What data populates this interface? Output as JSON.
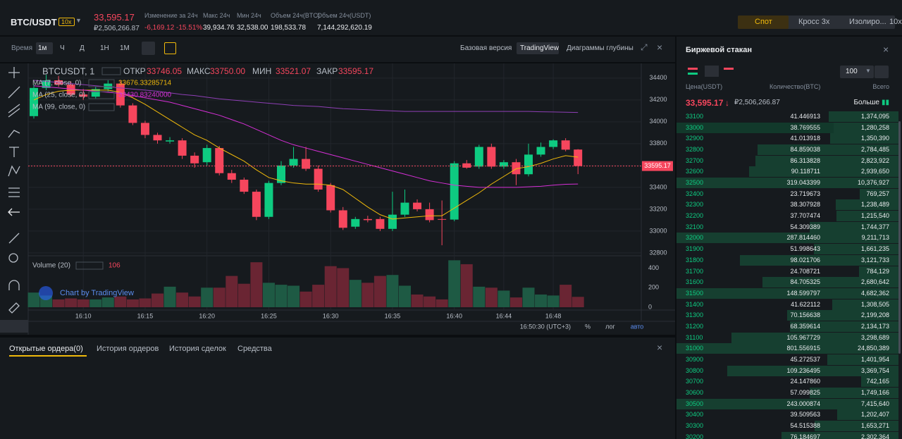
{
  "header": {
    "pair": "BTC/USDT",
    "leverage": "10x",
    "price": "33,595.17",
    "price_fiat": "₽2,506,266.87",
    "stats": [
      {
        "label": "Изменение за 24ч",
        "value": "-6,169.12 -15.51%"
      },
      {
        "label": "Макс 24ч",
        "value": "39,934.76"
      },
      {
        "label": "Мин 24ч",
        "value": "32,538.00"
      },
      {
        "label": "Объем 24ч(BTC)",
        "value": "198,533.78"
      },
      {
        "label": "Объем 24ч(USDT)",
        "value": "7,144,292,620.19"
      }
    ]
  },
  "trade_modes": [
    "Спот",
    "Кросс 3x",
    "Изолиро...",
    "10x"
  ],
  "toolbar": {
    "time_label": "Время",
    "intervals": [
      "1м",
      "Ч",
      "Д",
      "1Н",
      "1М"
    ],
    "views": [
      "Базовая версия",
      "TradingView",
      "Диаграммы глубины"
    ]
  },
  "chart_data": {
    "type": "candlestick",
    "symbol": "BTCUSDT, 1",
    "ohlc_labels": [
      {
        "label": "ОТКР",
        "value": "33746.05"
      },
      {
        "label": "МАКС",
        "value": "33750.00"
      },
      {
        "label": "МИН",
        "value": "33521.07"
      },
      {
        "label": "ЗАКР",
        "value": "33595.17"
      }
    ],
    "categories": [
      null,
      null,
      null,
      null,
      "16:10",
      null,
      null,
      null,
      null,
      "16:15",
      null,
      null,
      null,
      null,
      "16:20",
      null,
      null,
      null,
      null,
      "16:25",
      null,
      null,
      null,
      null,
      "16:30",
      null,
      null,
      null,
      null,
      "16:35",
      null,
      null,
      null,
      null,
      "16:40",
      null,
      null,
      null,
      "16:44",
      null,
      null,
      null,
      "16:48",
      null,
      null
    ],
    "open": [
      34052,
      34310,
      34380,
      34340,
      34250,
      34230,
      34300,
      34350,
      34150,
      33990,
      33880,
      33820,
      33830,
      33690,
      33630,
      33760,
      33530,
      33470,
      33360,
      33130,
      33440,
      33600,
      33660,
      33570,
      33420,
      33190,
      33040,
      33110,
      33110,
      33020,
      33150,
      33260,
      33200,
      33110,
      33105,
      33620,
      33590,
      33770,
      33590,
      33630,
      33520,
      33700,
      33770,
      33830,
      33746.05
    ],
    "high": [
      34340,
      34430,
      34420,
      34370,
      34300,
      34320,
      34380,
      34380,
      34170,
      34010,
      33900,
      33860,
      33850,
      33720,
      33790,
      33780,
      33560,
      33490,
      33380,
      33460,
      33640,
      33770,
      33770,
      33600,
      33440,
      33220,
      33130,
      33140,
      33130,
      33360,
      33380,
      33290,
      33260,
      33280,
      33640,
      33650,
      33790,
      33800,
      33650,
      33660,
      33800,
      33810,
      33840,
      33850,
      33750
    ],
    "low": [
      34030,
      34290,
      34320,
      34230,
      34200,
      34210,
      34280,
      34130,
      33970,
      33850,
      33800,
      33800,
      33660,
      33580,
      33600,
      33510,
      33440,
      33340,
      33100,
      33110,
      33420,
      33580,
      33550,
      33360,
      33170,
      33010,
      33020,
      33080,
      33000,
      33000,
      33130,
      33180,
      33080,
      32870,
      33090,
      33570,
      33570,
      33570,
      33570,
      33420,
      33500,
      33680,
      33750,
      33730,
      33521.07
    ],
    "close": [
      34310,
      34380,
      34340,
      34250,
      34230,
      34300,
      34350,
      34150,
      33990,
      33880,
      33830,
      33830,
      33690,
      33620,
      33760,
      33530,
      33470,
      33360,
      33130,
      33440,
      33600,
      33660,
      33570,
      33380,
      33190,
      33030,
      33110,
      33100,
      33020,
      33150,
      33260,
      33200,
      33100,
      33105,
      33620,
      33580,
      33770,
      33590,
      33630,
      33520,
      33700,
      33770,
      33830,
      33745,
      33595.17
    ],
    "volume": [
      150,
      120,
      80,
      90,
      80,
      80,
      100,
      110,
      80,
      90,
      140,
      210,
      150,
      110,
      200,
      200,
      320,
      240,
      460,
      250,
      230,
      220,
      160,
      230,
      420,
      400,
      280,
      250,
      320,
      330,
      220,
      130,
      110,
      80,
      480,
      440,
      210,
      200,
      170,
      100,
      200,
      130,
      120,
      230,
      106
    ],
    "ma": [
      {
        "name": "MA (7, close, 0)",
        "value": "33676.33285714",
        "color": "#f0b90b",
        "values": [
          34200,
          34250,
          34280,
          34290,
          34290,
          34290,
          34290,
          34270,
          34220,
          34160,
          34090,
          34020,
          33950,
          33880,
          33830,
          33760,
          33700,
          33640,
          33560,
          33490,
          33460,
          33440,
          33430,
          33430,
          33420,
          33380,
          33300,
          33220,
          33150,
          33110,
          33120,
          33130,
          33140,
          33140,
          33210,
          33280,
          33350,
          33430,
          33500,
          33570,
          33590,
          33620,
          33660,
          33690,
          33676.33
        ]
      },
      {
        "name": "MA (25, close, 0)",
        "value": "33430.83240000",
        "color": "#d62fd6",
        "values": [
          34330,
          34320,
          34310,
          34300,
          34290,
          34280,
          34270,
          34260,
          34240,
          34220,
          34200,
          34180,
          34150,
          34120,
          34090,
          34060,
          34020,
          33980,
          33930,
          33880,
          33830,
          33790,
          33760,
          33730,
          33700,
          33670,
          33640,
          33610,
          33580,
          33550,
          33520,
          33490,
          33460,
          33440,
          33420,
          33410,
          33400,
          33400,
          33400,
          33400,
          33405,
          33410,
          33420,
          33428,
          33430.83
        ]
      },
      {
        "name": "MA (99, close, 0)",
        "color": "#8e3fb5",
        "values": [
          34380,
          34370,
          34360,
          34350,
          34340,
          34330,
          34320,
          34310,
          34300,
          34290,
          34280,
          34265,
          34250,
          34240,
          34225,
          34210,
          34200,
          34190,
          34180,
          34170,
          34160,
          34150,
          34145,
          34140,
          34130,
          34120,
          34115,
          34110,
          34105,
          34100,
          34095,
          34095,
          34095,
          34095,
          34095,
          34095,
          34095,
          34095,
          34095,
          34095,
          34095,
          34092,
          34090,
          34088,
          34085
        ]
      }
    ],
    "ylim": [
      32780,
      34470
    ],
    "yticks": [
      32800,
      33000,
      33200,
      33400,
      33600,
      33800,
      34000,
      34200,
      34400
    ],
    "last_price": 33595.17,
    "volume_label": "Volume (20)",
    "volume_value": "106",
    "volume_ylim": [
      0,
      490
    ],
    "volume_yticks": [
      0,
      200,
      400
    ],
    "time": "16:50:30 (UTC+3)",
    "scale_buttons": [
      "%",
      "лог",
      "авто"
    ],
    "watermark": "Chart by TradingView"
  },
  "order_book": {
    "title": "Биржевой стакан",
    "depth": "100",
    "columns": [
      "Цена(USDT)",
      "Количество(BTC)",
      "Всего"
    ],
    "last_price": "33,595.17",
    "arrow": "↓",
    "last_price_fiat": "₽2,506,266.87",
    "more": "Больше",
    "rows": [
      [
        33100,
        "41.446913",
        "1,374,095"
      ],
      [
        33000,
        "38.769555",
        "1,280,258"
      ],
      [
        32900,
        "41.013918",
        "1,350,390"
      ],
      [
        32800,
        "84.859038",
        "2,784,485"
      ],
      [
        32700,
        "86.313828",
        "2,823,922"
      ],
      [
        32600,
        "90.118711",
        "2,939,650"
      ],
      [
        32500,
        "319.043399",
        "10,376,927"
      ],
      [
        32400,
        "23.719673",
        "769,257"
      ],
      [
        32300,
        "38.307928",
        "1,238,489"
      ],
      [
        32200,
        "37.707474",
        "1,215,540"
      ],
      [
        32100,
        "54.309389",
        "1,744,377"
      ],
      [
        32000,
        "287.814460",
        "9,211,713"
      ],
      [
        31900,
        "51.998643",
        "1,661,235"
      ],
      [
        31800,
        "98.021706",
        "3,121,733"
      ],
      [
        31700,
        "24.708721",
        "784,129"
      ],
      [
        31600,
        "84.705325",
        "2,680,642"
      ],
      [
        31500,
        "148.599797",
        "4,682,362"
      ],
      [
        31400,
        "41.622112",
        "1,308,505"
      ],
      [
        31300,
        "70.156638",
        "2,199,208"
      ],
      [
        31200,
        "68.359614",
        "2,134,173"
      ],
      [
        31100,
        "105.967729",
        "3,298,689"
      ],
      [
        31000,
        "801.556915",
        "24,850,389"
      ],
      [
        30900,
        "45.272537",
        "1,401,954"
      ],
      [
        30800,
        "109.236495",
        "3,369,754"
      ],
      [
        30700,
        "24.147860",
        "742,165"
      ],
      [
        30600,
        "57.099825",
        "1,749,166"
      ],
      [
        30500,
        "243.000874",
        "7,415,640"
      ],
      [
        30400,
        "39.509563",
        "1,202,407"
      ],
      [
        30300,
        "54.515388",
        "1,653,271"
      ],
      [
        30200,
        "76.184697",
        "2,302,364"
      ]
    ]
  },
  "bottom_tabs": [
    "Открытые ордера(0)",
    "История ордеров",
    "История сделок",
    "Средства"
  ]
}
